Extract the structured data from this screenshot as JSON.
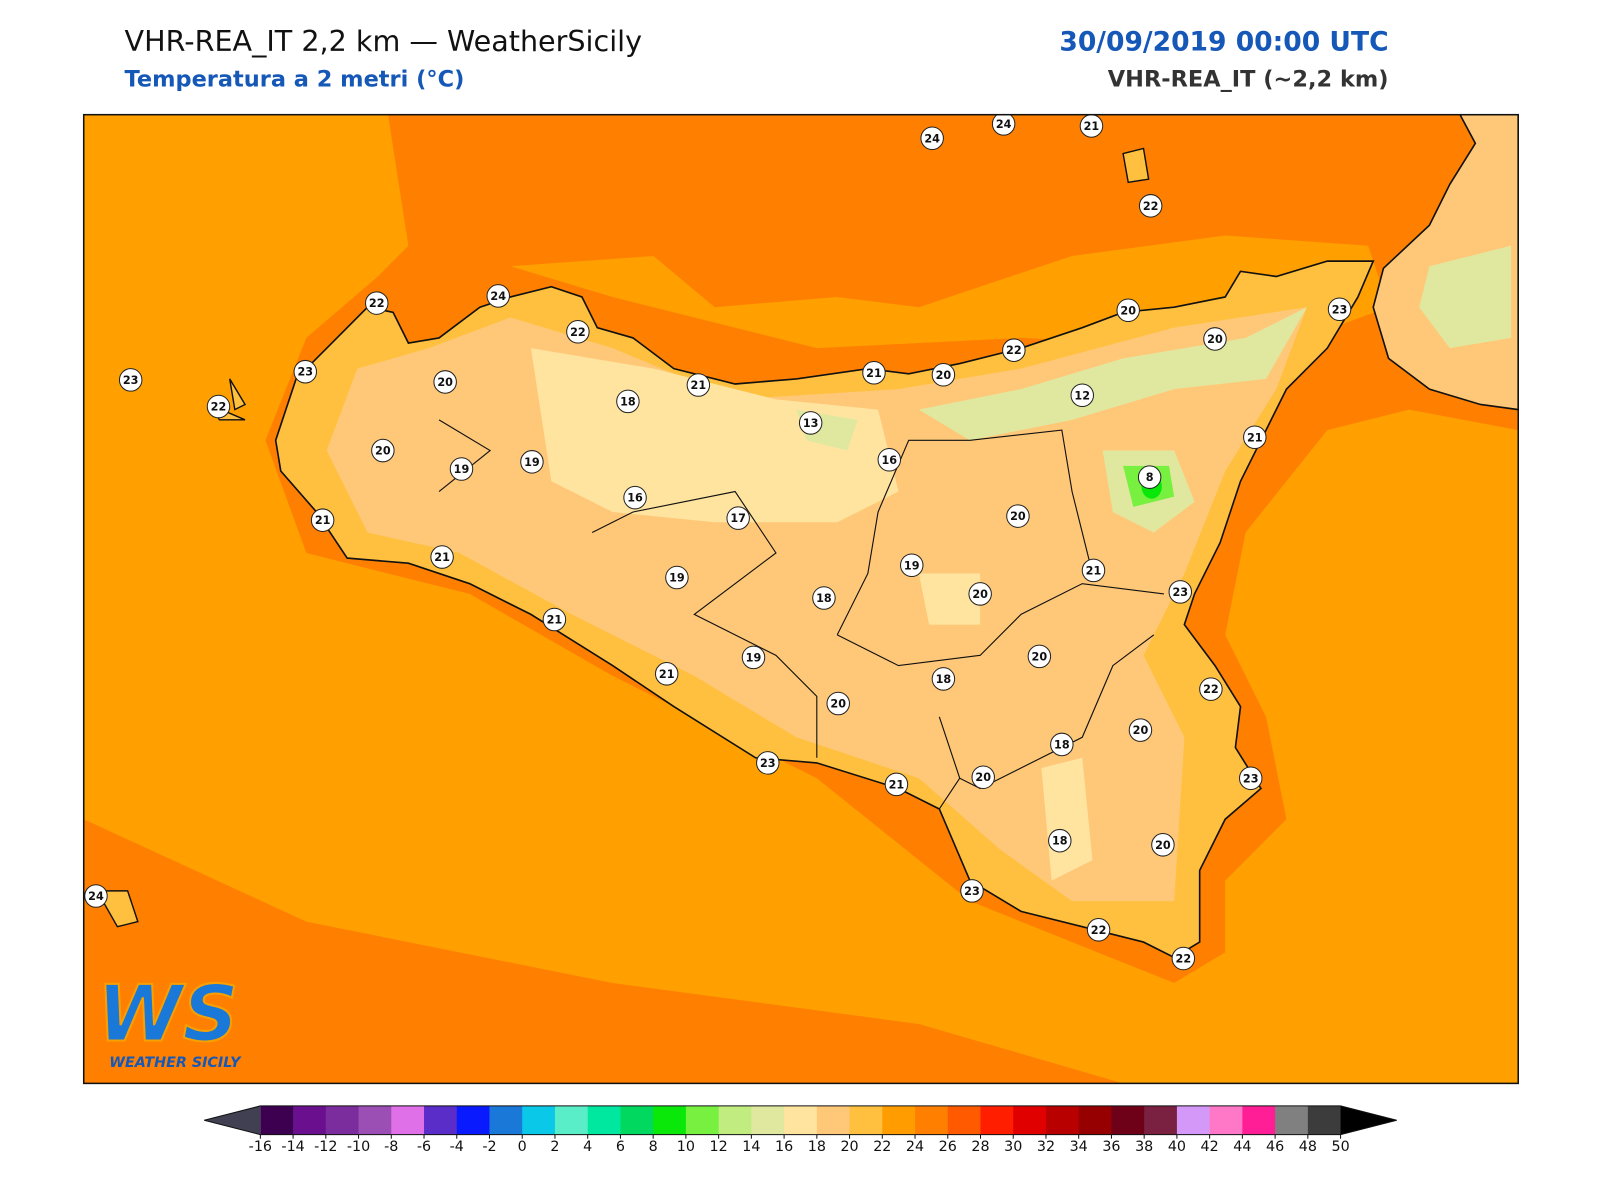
{
  "header": {
    "title": "VHR-REA_IT 2,2 km — WeatherSicily",
    "subtitle": "Temperatura a 2 metri (°C)",
    "datetime": "30/09/2019 00:00 UTC",
    "model": "VHR-REA_IT (~2,2 km)"
  },
  "stations": {
    "values": [
      24,
      24,
      21,
      22,
      22,
      24,
      22,
      23,
      23,
      22,
      20,
      18,
      21,
      21,
      20,
      22,
      20,
      20,
      23,
      12,
      13,
      16,
      20,
      19,
      19,
      16,
      17,
      21,
      8,
      20,
      21,
      21,
      19,
      19,
      21,
      23,
      20,
      18,
      21,
      19,
      20,
      18,
      21,
      22,
      20,
      20,
      18,
      23,
      21,
      20,
      23,
      18,
      20,
      24,
      23,
      22,
      22
    ]
  },
  "colorbar": {
    "ticks": [
      -16,
      -14,
      -12,
      -10,
      -8,
      -6,
      -4,
      -2,
      0,
      2,
      4,
      6,
      8,
      10,
      12,
      14,
      16,
      18,
      20,
      22,
      24,
      26,
      28,
      30,
      32,
      34,
      36,
      38,
      40,
      42,
      44,
      46,
      48,
      50
    ],
    "colors": [
      "#3d0050",
      "#6a0f8e",
      "#7b2d9e",
      "#9b4fb5",
      "#e070e8",
      "#5a2dc8",
      "#0a1aff",
      "#1a78d8",
      "#0ac8e8",
      "#5aeec8",
      "#00e8a0",
      "#00d860",
      "#0ae80a",
      "#78f040",
      "#c0ec80",
      "#e0e8a0",
      "#ffe4a0",
      "#ffc878",
      "#ffc040",
      "#ff9c00",
      "#ff8000",
      "#ff5a00",
      "#ff1e00",
      "#e00000",
      "#b80000",
      "#960000",
      "#6e0018",
      "#7a2040",
      "#d498f8",
      "#ff78c8",
      "#ff1e96",
      "#808080",
      "#3c3c3c"
    ],
    "under_color": "#404052",
    "over_color": "#000000"
  },
  "logo": {
    "mark": "WS",
    "text": "WEATHER SICILY"
  }
}
